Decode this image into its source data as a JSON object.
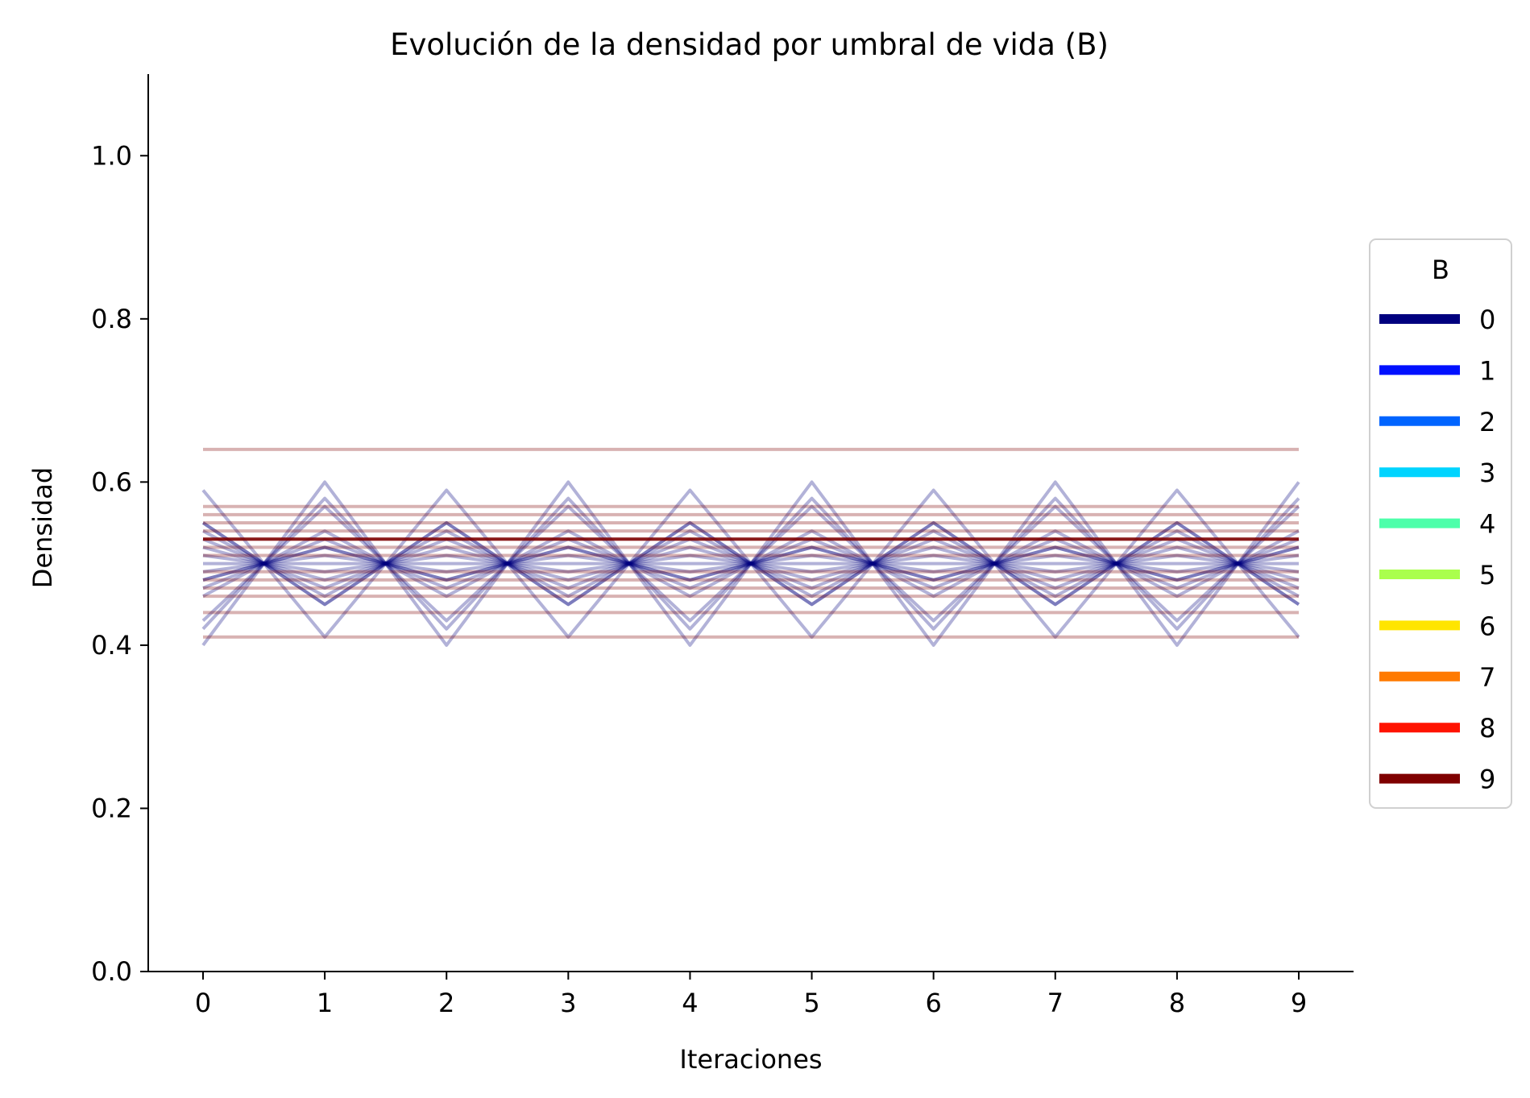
{
  "chart_data": {
    "type": "line",
    "title": "Evolución de la densidad por umbral de vida (B)",
    "xlabel": "Iteraciones",
    "ylabel": "Densidad",
    "x": [
      0,
      1,
      2,
      3,
      4,
      5,
      6,
      7,
      8,
      9
    ],
    "xlim": [
      -0.45,
      9.45
    ],
    "ylim": [
      0,
      1.1
    ],
    "xticks": [
      "0",
      "1",
      "2",
      "3",
      "4",
      "5",
      "6",
      "7",
      "8",
      "9"
    ],
    "yticks": [
      "0.0",
      "0.2",
      "0.4",
      "0.6",
      "0.8",
      "1.0"
    ],
    "grid": false,
    "legend": {
      "title": "B",
      "placement": "right",
      "entries": [
        {
          "label": "0",
          "color": "#00007f"
        },
        {
          "label": "1",
          "color": "#0010ff"
        },
        {
          "label": "2",
          "color": "#0064ff"
        },
        {
          "label": "3",
          "color": "#00d4ff"
        },
        {
          "label": "4",
          "color": "#4dffaa"
        },
        {
          "label": "5",
          "color": "#aaff4d"
        },
        {
          "label": "6",
          "color": "#ffe500"
        },
        {
          "label": "7",
          "color": "#ff7a00"
        },
        {
          "label": "8",
          "color": "#ff1300"
        },
        {
          "label": "9",
          "color": "#7f0000"
        }
      ]
    },
    "series": [
      {
        "color": "#00007f",
        "opacity": 0.3,
        "values": [
          0.4,
          0.6,
          0.4,
          0.6,
          0.4,
          0.6,
          0.4,
          0.6,
          0.4,
          0.6
        ]
      },
      {
        "color": "#00007f",
        "opacity": 0.3,
        "values": [
          0.59,
          0.41,
          0.59,
          0.41,
          0.59,
          0.41,
          0.59,
          0.41,
          0.59,
          0.41
        ]
      },
      {
        "color": "#00007f",
        "opacity": 0.3,
        "values": [
          0.42,
          0.58,
          0.42,
          0.58,
          0.42,
          0.58,
          0.42,
          0.58,
          0.42,
          0.58
        ]
      },
      {
        "color": "#00007f",
        "opacity": 0.3,
        "values": [
          0.43,
          0.57,
          0.43,
          0.57,
          0.43,
          0.57,
          0.43,
          0.57,
          0.43,
          0.57
        ]
      },
      {
        "color": "#00007f",
        "opacity": 0.3,
        "values": [
          0.55,
          0.45,
          0.55,
          0.45,
          0.55,
          0.45,
          0.55,
          0.45,
          0.55,
          0.45
        ]
      },
      {
        "color": "#00007f",
        "opacity": 0.3,
        "values": [
          0.46,
          0.54,
          0.46,
          0.54,
          0.46,
          0.54,
          0.46,
          0.54,
          0.46,
          0.54
        ]
      },
      {
        "color": "#00007f",
        "opacity": 0.3,
        "values": [
          0.54,
          0.46,
          0.54,
          0.46,
          0.54,
          0.46,
          0.54,
          0.46,
          0.54,
          0.46
        ]
      },
      {
        "color": "#00007f",
        "opacity": 0.3,
        "values": [
          0.47,
          0.53,
          0.47,
          0.53,
          0.47,
          0.53,
          0.47,
          0.53,
          0.47,
          0.53
        ]
      },
      {
        "color": "#00007f",
        "opacity": 0.3,
        "values": [
          0.52,
          0.48,
          0.52,
          0.48,
          0.52,
          0.48,
          0.52,
          0.48,
          0.52,
          0.48
        ]
      },
      {
        "color": "#00007f",
        "opacity": 0.3,
        "values": [
          0.48,
          0.52,
          0.48,
          0.52,
          0.48,
          0.52,
          0.48,
          0.52,
          0.48,
          0.52
        ]
      },
      {
        "color": "#00007f",
        "opacity": 0.3,
        "values": [
          0.51,
          0.49,
          0.51,
          0.49,
          0.51,
          0.49,
          0.51,
          0.49,
          0.51,
          0.49
        ]
      },
      {
        "color": "#00007f",
        "opacity": 0.3,
        "values": [
          0.49,
          0.51,
          0.49,
          0.51,
          0.49,
          0.51,
          0.49,
          0.51,
          0.49,
          0.51
        ]
      },
      {
        "color": "#00007f",
        "opacity": 0.3,
        "values": [
          0.5,
          0.5,
          0.5,
          0.5,
          0.5,
          0.5,
          0.5,
          0.5,
          0.5,
          0.5
        ]
      },
      {
        "color": "#00007f",
        "opacity": 0.3,
        "values": [
          0.53,
          0.47,
          0.53,
          0.47,
          0.53,
          0.47,
          0.53,
          0.47,
          0.53,
          0.47
        ]
      },
      {
        "color": "#00007f",
        "opacity": 0.3,
        "values": [
          0.55,
          0.45,
          0.55,
          0.45,
          0.55,
          0.45,
          0.55,
          0.45,
          0.55,
          0.45
        ]
      },
      {
        "color": "#00007f",
        "opacity": 0.3,
        "values": [
          0.48,
          0.52,
          0.48,
          0.52,
          0.48,
          0.52,
          0.48,
          0.52,
          0.48,
          0.52
        ]
      },
      {
        "color": "#7f0000",
        "opacity": 0.3,
        "values": [
          0.64,
          0.64,
          0.64,
          0.64,
          0.64,
          0.64,
          0.64,
          0.64,
          0.64,
          0.64
        ]
      },
      {
        "color": "#7f0000",
        "opacity": 0.3,
        "values": [
          0.57,
          0.57,
          0.57,
          0.57,
          0.57,
          0.57,
          0.57,
          0.57,
          0.57,
          0.57
        ]
      },
      {
        "color": "#7f0000",
        "opacity": 0.3,
        "values": [
          0.56,
          0.56,
          0.56,
          0.56,
          0.56,
          0.56,
          0.56,
          0.56,
          0.56,
          0.56
        ]
      },
      {
        "color": "#7f0000",
        "opacity": 0.3,
        "values": [
          0.55,
          0.55,
          0.55,
          0.55,
          0.55,
          0.55,
          0.55,
          0.55,
          0.55,
          0.55
        ]
      },
      {
        "color": "#7f0000",
        "opacity": 0.3,
        "values": [
          0.54,
          0.54,
          0.54,
          0.54,
          0.54,
          0.54,
          0.54,
          0.54,
          0.54,
          0.54
        ]
      },
      {
        "color": "#7f0000",
        "opacity": 0.3,
        "values": [
          0.53,
          0.53,
          0.53,
          0.53,
          0.53,
          0.53,
          0.53,
          0.53,
          0.53,
          0.53
        ]
      },
      {
        "color": "#7f0000",
        "opacity": 0.3,
        "values": [
          0.52,
          0.52,
          0.52,
          0.52,
          0.52,
          0.52,
          0.52,
          0.52,
          0.52,
          0.52
        ]
      },
      {
        "color": "#7f0000",
        "opacity": 0.3,
        "values": [
          0.51,
          0.51,
          0.51,
          0.51,
          0.51,
          0.51,
          0.51,
          0.51,
          0.51,
          0.51
        ]
      },
      {
        "color": "#7f0000",
        "opacity": 0.3,
        "values": [
          0.49,
          0.49,
          0.49,
          0.49,
          0.49,
          0.49,
          0.49,
          0.49,
          0.49,
          0.49
        ]
      },
      {
        "color": "#7f0000",
        "opacity": 0.3,
        "values": [
          0.48,
          0.48,
          0.48,
          0.48,
          0.48,
          0.48,
          0.48,
          0.48,
          0.48,
          0.48
        ]
      },
      {
        "color": "#7f0000",
        "opacity": 0.3,
        "values": [
          0.47,
          0.47,
          0.47,
          0.47,
          0.47,
          0.47,
          0.47,
          0.47,
          0.47,
          0.47
        ]
      },
      {
        "color": "#7f0000",
        "opacity": 0.3,
        "values": [
          0.46,
          0.46,
          0.46,
          0.46,
          0.46,
          0.46,
          0.46,
          0.46,
          0.46,
          0.46
        ]
      },
      {
        "color": "#7f0000",
        "opacity": 0.3,
        "values": [
          0.44,
          0.44,
          0.44,
          0.44,
          0.44,
          0.44,
          0.44,
          0.44,
          0.44,
          0.44
        ]
      },
      {
        "color": "#7f0000",
        "opacity": 0.3,
        "values": [
          0.41,
          0.41,
          0.41,
          0.41,
          0.41,
          0.41,
          0.41,
          0.41,
          0.41,
          0.41
        ]
      },
      {
        "color": "#7f0000",
        "opacity": 0.85,
        "values": [
          0.53,
          0.53,
          0.53,
          0.53,
          0.53,
          0.53,
          0.53,
          0.53,
          0.53,
          0.53
        ]
      }
    ]
  }
}
